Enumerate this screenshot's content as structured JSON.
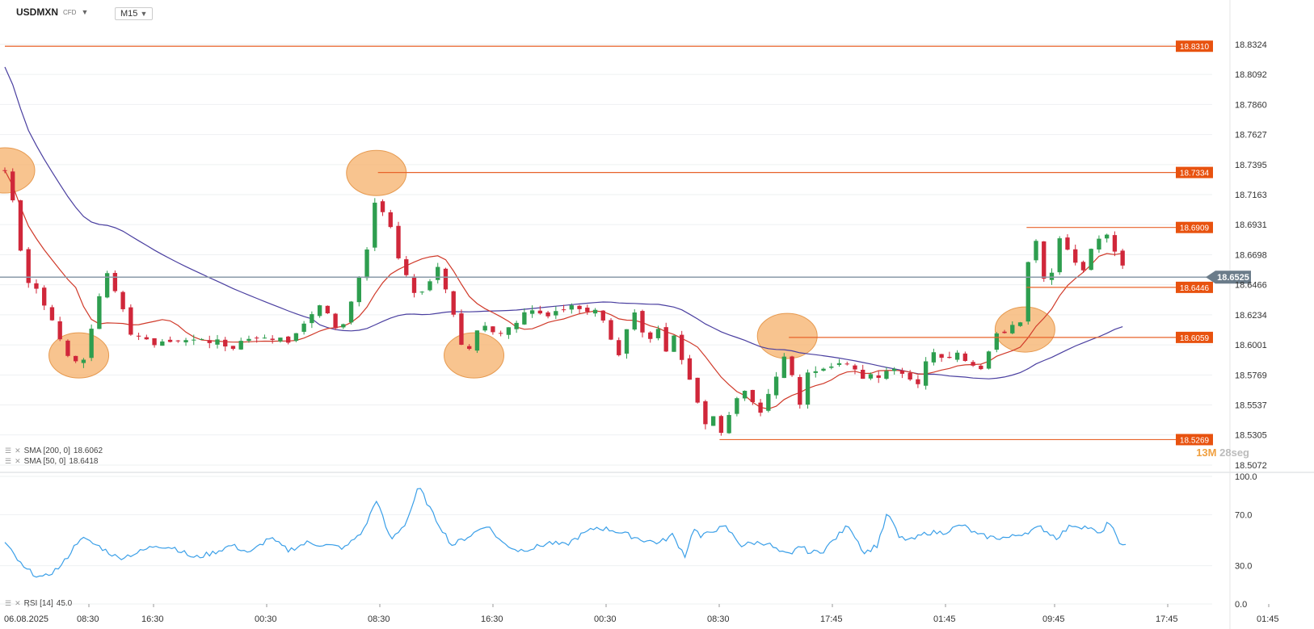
{
  "header": {
    "symbol": "USDMXN",
    "instrument_type": "CFD",
    "timeframe": "M15"
  },
  "indicators": {
    "sma200": {
      "label": "SMA [200, 0]",
      "value": "18.6062",
      "color": "#4a3fa0"
    },
    "sma50": {
      "label": "SMA [50, 0]",
      "value": "18.6418",
      "color": "#d03a2a"
    },
    "rsi": {
      "label": "RSI [14]",
      "value": "45.0",
      "color": "#3a9fe8"
    }
  },
  "timer": {
    "minutes": "13",
    "minutes_unit": "M",
    "seconds": "28",
    "seconds_unit": "seg"
  },
  "chart_data": [
    {
      "type": "candlestick",
      "title": "USDMXN M15",
      "y_ticks": [
        "18.8324",
        "18.8092",
        "18.7860",
        "18.7627",
        "18.7395",
        "18.7163",
        "18.6931",
        "18.6698",
        "18.6466",
        "18.6234",
        "18.6001",
        "18.5769",
        "18.5537",
        "18.5305",
        "18.5072"
      ],
      "ylim": [
        18.5072,
        18.8324
      ],
      "x_ticks": [
        "06.08.2025",
        "08:30",
        "16:30",
        "00:30",
        "08:30",
        "16:30",
        "00:30",
        "08:30",
        "17:45",
        "01:45",
        "09:45",
        "17:45",
        "01:45"
      ],
      "current_price": "18.6525",
      "horizontal_levels": [
        {
          "value": "18.8310",
          "color": "#e8632a"
        },
        {
          "value": "18.7334",
          "color": "#e8632a"
        },
        {
          "value": "18.6909",
          "color": "#e8632a"
        },
        {
          "value": "18.6446",
          "color": "#e8632a"
        },
        {
          "value": "18.6059",
          "color": "#e8632a"
        },
        {
          "value": "18.5269",
          "color": "#e8632a"
        }
      ],
      "colors": {
        "up": "#2e9e4f",
        "down": "#d0273a",
        "highlight": "#f5b06a",
        "current_line": "#8a9aa8",
        "label_bg": "#e8520f"
      },
      "anchors_close": [
        [
          0,
          18.735
        ],
        [
          6,
          18.71
        ],
        [
          12,
          18.655
        ],
        [
          22,
          18.64
        ],
        [
          33,
          18.61
        ],
        [
          42,
          18.585
        ],
        [
          52,
          18.592
        ],
        [
          60,
          18.64
        ],
        [
          64,
          18.655
        ],
        [
          71,
          18.64
        ],
        [
          80,
          18.61
        ],
        [
          88,
          18.605
        ],
        [
          95,
          18.602
        ],
        [
          104,
          18.605
        ],
        [
          115,
          18.604
        ],
        [
          126,
          18.603
        ],
        [
          137,
          18.605
        ],
        [
          145,
          18.596
        ],
        [
          156,
          18.606
        ],
        [
          167,
          18.606
        ],
        [
          181,
          18.603
        ],
        [
          188,
          18.61
        ],
        [
          191,
          18.616
        ],
        [
          196,
          18.624
        ],
        [
          201,
          18.632
        ],
        [
          206,
          18.624
        ],
        [
          212,
          18.61
        ],
        [
          218,
          18.62
        ],
        [
          222,
          18.65
        ],
        [
          228,
          18.66
        ],
        [
          234,
          18.7
        ],
        [
          236,
          18.725
        ],
        [
          239,
          18.705
        ],
        [
          244,
          18.695
        ],
        [
          251,
          18.665
        ],
        [
          257,
          18.645
        ],
        [
          265,
          18.64
        ],
        [
          271,
          18.65
        ],
        [
          276,
          18.665
        ],
        [
          280,
          18.645
        ],
        [
          284,
          18.63
        ],
        [
          287,
          18.618
        ],
        [
          290,
          18.6
        ],
        [
          293,
          18.592
        ],
        [
          295,
          18.595
        ],
        [
          298,
          18.6
        ],
        [
          301,
          18.617
        ],
        [
          306,
          18.616
        ],
        [
          313,
          18.61
        ],
        [
          320,
          18.612
        ],
        [
          327,
          18.622
        ],
        [
          334,
          18.628
        ],
        [
          341,
          18.624
        ],
        [
          348,
          18.626
        ],
        [
          355,
          18.628
        ],
        [
          362,
          18.63
        ],
        [
          369,
          18.628
        ],
        [
          376,
          18.63
        ],
        [
          383,
          18.614
        ],
        [
          387,
          18.6
        ],
        [
          391,
          18.59
        ],
        [
          395,
          18.612
        ],
        [
          400,
          18.625
        ],
        [
          405,
          18.612
        ],
        [
          409,
          18.6
        ],
        [
          413,
          18.615
        ],
        [
          417,
          18.605
        ],
        [
          421,
          18.592
        ],
        [
          425,
          18.605
        ],
        [
          429,
          18.592
        ],
        [
          433,
          18.578
        ],
        [
          437,
          18.565
        ],
        [
          441,
          18.552
        ],
        [
          445,
          18.538
        ],
        [
          449,
          18.548
        ],
        [
          452,
          18.54
        ],
        [
          454,
          18.528
        ],
        [
          457,
          18.532
        ],
        [
          460,
          18.545
        ],
        [
          464,
          18.555
        ],
        [
          469,
          18.567
        ],
        [
          474,
          18.555
        ],
        [
          479,
          18.548
        ],
        [
          484,
          18.56
        ],
        [
          489,
          18.572
        ],
        [
          494,
          18.585
        ],
        [
          497,
          18.6
        ],
        [
          499,
          18.605
        ],
        [
          501,
          18.552
        ],
        [
          504,
          18.55
        ],
        [
          508,
          18.57
        ],
        [
          512,
          18.582
        ],
        [
          518,
          18.583
        ],
        [
          525,
          18.585
        ],
        [
          532,
          18.588
        ],
        [
          539,
          18.58
        ],
        [
          546,
          18.574
        ],
        [
          553,
          18.576
        ],
        [
          560,
          18.58
        ],
        [
          567,
          18.583
        ],
        [
          572,
          18.576
        ],
        [
          576,
          18.576
        ],
        [
          580,
          18.57
        ],
        [
          585,
          18.585
        ],
        [
          590,
          18.595
        ],
        [
          596,
          18.59
        ],
        [
          603,
          18.594
        ],
        [
          609,
          18.588
        ],
        [
          615,
          18.585
        ],
        [
          620,
          18.58
        ],
        [
          626,
          18.6
        ],
        [
          632,
          18.61
        ],
        [
          637,
          18.61
        ],
        [
          641,
          18.615
        ],
        [
          645,
          18.62
        ],
        [
          648,
          18.655
        ],
        [
          651,
          18.672
        ],
        [
          654,
          18.69
        ],
        [
          656,
          18.67
        ],
        [
          659,
          18.655
        ],
        [
          662,
          18.648
        ],
        [
          666,
          18.66
        ],
        [
          670,
          18.68
        ],
        [
          675,
          18.672
        ],
        [
          680,
          18.665
        ],
        [
          684,
          18.658
        ],
        [
          688,
          18.666
        ],
        [
          693,
          18.68
        ],
        [
          698,
          18.688
        ],
        [
          702,
          18.682
        ],
        [
          706,
          18.672
        ],
        [
          709,
          18.662
        ],
        [
          713,
          18.652
        ]
      ],
      "n_candles": 714
    },
    {
      "type": "line",
      "title": "RSI [14]",
      "y_ticks": [
        "100.0",
        "70.0",
        "30.0",
        "0.0"
      ],
      "ylim": [
        0,
        100
      ],
      "anchors": [
        [
          0,
          48
        ],
        [
          12,
          28
        ],
        [
          24,
          20
        ],
        [
          36,
          30
        ],
        [
          48,
          52
        ],
        [
          60,
          45
        ],
        [
          72,
          36
        ],
        [
          84,
          40
        ],
        [
          96,
          46
        ],
        [
          108,
          44
        ],
        [
          120,
          36
        ],
        [
          132,
          40
        ],
        [
          144,
          46
        ],
        [
          156,
          40
        ],
        [
          168,
          52
        ],
        [
          180,
          42
        ],
        [
          192,
          48
        ],
        [
          204,
          46
        ],
        [
          216,
          44
        ],
        [
          228,
          58
        ],
        [
          236,
          82
        ],
        [
          245,
          50
        ],
        [
          255,
          64
        ],
        [
          263,
          92
        ],
        [
          272,
          70
        ],
        [
          284,
          46
        ],
        [
          296,
          54
        ],
        [
          306,
          62
        ],
        [
          316,
          48
        ],
        [
          326,
          42
        ],
        [
          336,
          44
        ],
        [
          346,
          48
        ],
        [
          356,
          46
        ],
        [
          366,
          54
        ],
        [
          376,
          60
        ],
        [
          386,
          58
        ],
        [
          396,
          54
        ],
        [
          406,
          50
        ],
        [
          416,
          48
        ],
        [
          424,
          54
        ],
        [
          432,
          38
        ],
        [
          438,
          60
        ],
        [
          442,
          52
        ],
        [
          450,
          58
        ],
        [
          458,
          60
        ],
        [
          468,
          46
        ],
        [
          476,
          48
        ],
        [
          484,
          48
        ],
        [
          493,
          40
        ],
        [
          500,
          38
        ],
        [
          504,
          46
        ],
        [
          512,
          40
        ],
        [
          520,
          42
        ],
        [
          528,
          52
        ],
        [
          536,
          62
        ],
        [
          546,
          40
        ],
        [
          554,
          46
        ],
        [
          561,
          72
        ],
        [
          568,
          52
        ],
        [
          576,
          50
        ],
        [
          586,
          56
        ],
        [
          596,
          56
        ],
        [
          608,
          62
        ],
        [
          618,
          54
        ],
        [
          628,
          52
        ],
        [
          638,
          52
        ],
        [
          648,
          56
        ],
        [
          658,
          60
        ],
        [
          668,
          52
        ],
        [
          678,
          62
        ],
        [
          688,
          60
        ],
        [
          696,
          54
        ],
        [
          700,
          64
        ],
        [
          705,
          56
        ],
        [
          710,
          45
        ]
      ],
      "current": 45.0
    }
  ]
}
